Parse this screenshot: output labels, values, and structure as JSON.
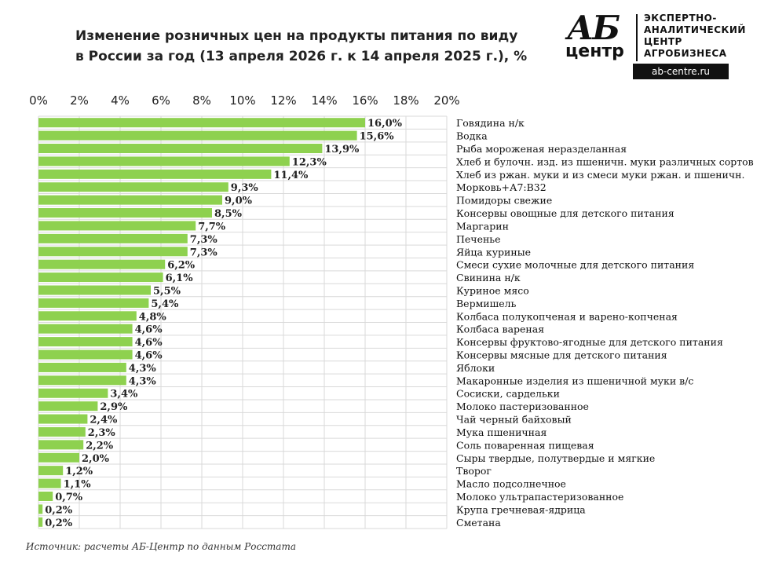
{
  "title_line1": "Изменение розничных цен на продукты питания по виду",
  "title_line2": "в России за год (13 апреля 2026 г. к 14 апреля 2025 г.), %",
  "logo": {
    "mark": "АБ",
    "centr": "центр",
    "line1": "ЭКСПЕРТНО-",
    "line2": "АНАЛИТИЧЕСКИЙ",
    "line3": "ЦЕНТР",
    "line4": "АГРОБИЗНЕСА",
    "url": "ab-centre.ru"
  },
  "source": "Источник: расчеты АБ-Центр по данным Росстата",
  "bar_color": "#8ed14f",
  "grid_color": "#d9d9d9",
  "chart_data": {
    "type": "bar",
    "orientation": "horizontal",
    "xlim": [
      0,
      20
    ],
    "x_ticks": [
      "0%",
      "2%",
      "4%",
      "6%",
      "8%",
      "10%",
      "12%",
      "14%",
      "16%",
      "18%",
      "20%"
    ],
    "grid": true,
    "categories": [
      "Говядина н/к",
      "Водка",
      "Рыба мороженая неразделанная",
      "Хлеб и булочн. изд. из пшеничн. муки различных сортов",
      "Хлеб из ржан. муки и из смеси муки ржан. и пшеничн.",
      "Морковь+А7:В32",
      "Помидоры свежие",
      "Консервы овощные для детского питания",
      "Маргарин",
      "Печенье",
      "Яйца куриные",
      "Смеси сухие молочные для детского питания",
      "Свинина н/к",
      "Куриное мясо",
      "Вермишель",
      "Колбаса полукопченая и варено-копченая",
      "Колбаса вареная",
      "Консервы фруктово-ягодные для детского питания",
      "Консервы мясные для детского питания",
      "Яблоки",
      "Макаронные изделия из пшеничной муки в/с",
      "Сосиски, сардельки",
      "Молоко пастеризованное",
      "Чай черный байховый",
      "Мука пшеничная",
      "Соль поваренная пищевая",
      "Сыры твердые, полутвердые и мягкие",
      "Творог",
      "Масло подсолнечное",
      "Молоко ультрапастеризованное",
      "Крупа гречневая-ядрица",
      "Сметана"
    ],
    "values": [
      16.0,
      15.6,
      13.9,
      12.3,
      11.4,
      9.3,
      9.0,
      8.5,
      7.7,
      7.3,
      7.3,
      6.2,
      6.1,
      5.5,
      5.4,
      4.8,
      4.6,
      4.6,
      4.6,
      4.3,
      4.3,
      3.4,
      2.9,
      2.4,
      2.3,
      2.2,
      2.0,
      1.2,
      1.1,
      0.7,
      0.2,
      0.2
    ],
    "value_labels": [
      "16,0%",
      "15,6%",
      "13,9%",
      "12,3%",
      "11,4%",
      "9,3%",
      "9,0%",
      "8,5%",
      "7,7%",
      "7,3%",
      "7,3%",
      "6,2%",
      "6,1%",
      "5,5%",
      "5,4%",
      "4,8%",
      "4,6%",
      "4,6%",
      "4,6%",
      "4,3%",
      "4,3%",
      "3,4%",
      "2,9%",
      "2,4%",
      "2,3%",
      "2,2%",
      "2,0%",
      "1,2%",
      "1,1%",
      "0,7%",
      "0,2%",
      "0,2%"
    ]
  }
}
